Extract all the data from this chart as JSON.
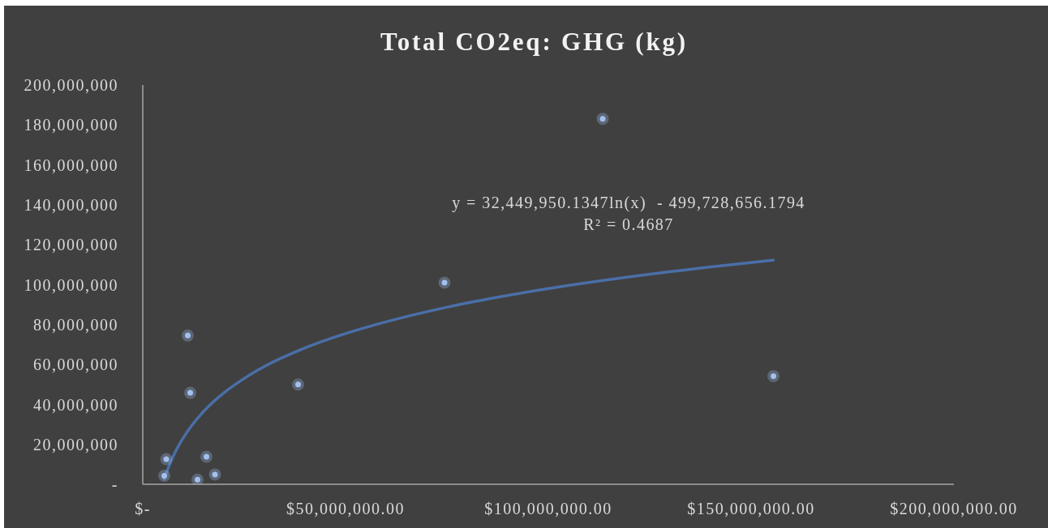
{
  "chart_data": {
    "type": "scatter",
    "title": "Total CO2eq: GHG (kg)",
    "series": [
      {
        "color": "#a3c0f0",
        "x": [
          5300000,
          5800000,
          11100000,
          11700000,
          13500000,
          15700000,
          17800000,
          38300000,
          74400000,
          113400000,
          155500000
        ],
        "values": [
          4300000,
          12600000,
          74500000,
          45800000,
          2300000,
          13800000,
          4900000,
          50000000,
          101000000,
          183100000,
          54200000
        ]
      },
      {
        "type": "line",
        "color": "#4a6fa8",
        "marker": "none",
        "x": [
          5300000,
          5500000,
          6000000,
          7000000,
          8000000,
          9000000,
          10000000,
          12000000,
          15000000,
          20000000,
          25000000,
          30000000,
          40000000,
          50000000,
          60000000,
          75000000,
          90000000,
          110000000,
          130000000,
          155500000
        ],
        "values": [
          2700000,
          3900000,
          6700000,
          11700000,
          16100000,
          19900000,
          23300000,
          29200000,
          36500000,
          45800000,
          53000000,
          59000000,
          68300000,
          75500000,
          81400000,
          88700000,
          94600000,
          101100000,
          106500000,
          112300000
        ]
      }
    ],
    "xlim": [
      0,
      200000000
    ],
    "xticks": [
      {
        "value": 0,
        "label": "$-"
      },
      {
        "value": 50000000,
        "label": "$50,000,000.00"
      },
      {
        "value": 100000000,
        "label": "$100,000,000.00"
      },
      {
        "value": 150000000,
        "label": "$150,000,000.00"
      },
      {
        "value": 200000000,
        "label": "$200,000,000.00"
      }
    ],
    "ylim": [
      0,
      200000000
    ],
    "yticks": [
      {
        "value": 0,
        "label": "-"
      },
      {
        "value": 20000000,
        "label": "20,000,000"
      },
      {
        "value": 40000000,
        "label": "40,000,000"
      },
      {
        "value": 60000000,
        "label": "60,000,000"
      },
      {
        "value": 80000000,
        "label": "80,000,000"
      },
      {
        "value": 100000000,
        "label": "100,000,000"
      },
      {
        "value": 120000000,
        "label": "120,000,000"
      },
      {
        "value": 140000000,
        "label": "140,000,000"
      },
      {
        "value": 160000000,
        "label": "160,000,000"
      },
      {
        "value": 180000000,
        "label": "180,000,000"
      },
      {
        "value": 200000000,
        "label": "200,000,000"
      }
    ],
    "marker": "circle",
    "annotations": [
      "y = 32,449,950.1347ln(x)  - 499,728,656.1794",
      "R² = 0.4687"
    ]
  }
}
